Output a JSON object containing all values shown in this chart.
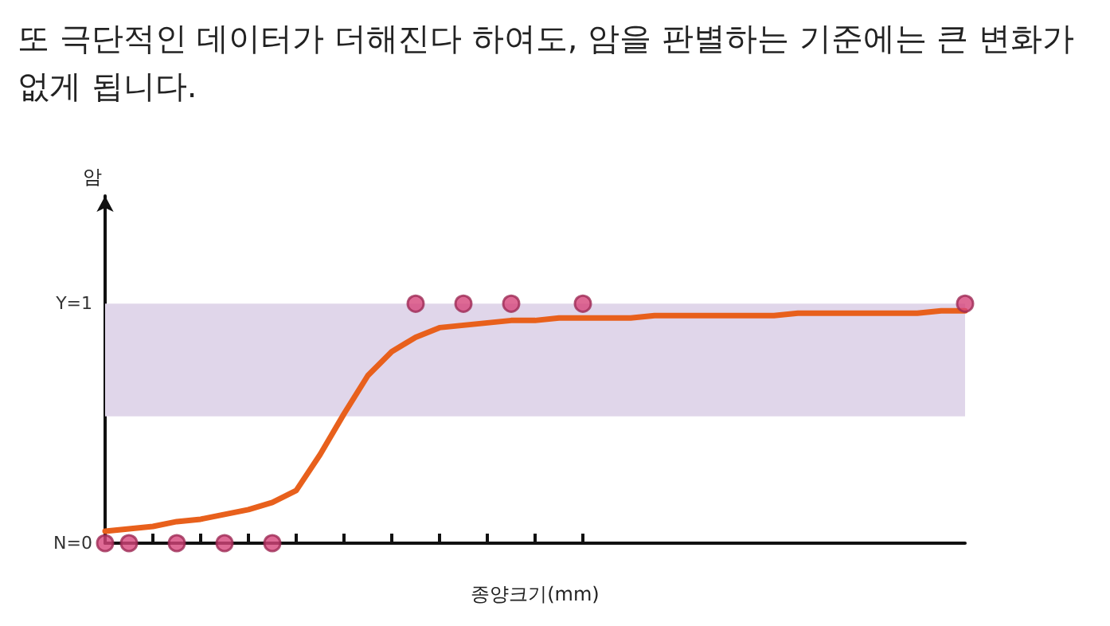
{
  "chart_data": {
    "type": "scatter",
    "title": "또 극단적인 데이터가 더해진다 하여도, 암을 판별하는 기준에는 큰 변화가 없게 됩니다.",
    "xlabel": "종양크기(mm)",
    "ylabel": "암",
    "categories": [
      null,
      null,
      null,
      null,
      null,
      null,
      null,
      null,
      null,
      null,
      null,
      null,
      null,
      null,
      null,
      null,
      null,
      null,
      null,
      null,
      null,
      null,
      null,
      null,
      null,
      null,
      null,
      null,
      null,
      null,
      null,
      null,
      null,
      null,
      null,
      null,
      null
    ],
    "series": [
      {
        "type": "line",
        "color": "#e8601c",
        "marker": "none",
        "values": [
          0.05,
          0.06,
          0.07,
          0.09,
          0.1,
          0.12,
          0.14,
          0.17,
          0.22,
          0.37,
          0.54,
          0.7,
          0.8,
          0.86,
          0.9,
          0.91,
          0.92,
          0.93,
          0.93,
          0.94,
          0.94,
          0.94,
          0.94,
          0.95,
          0.95,
          0.95,
          0.95,
          0.95,
          0.95,
          0.96,
          0.96,
          0.96,
          0.96,
          0.96,
          0.96,
          0.97,
          0.97
        ]
      },
      {
        "color": "#d6457a",
        "marker": "circle",
        "values": [
          0,
          0,
          null,
          0,
          null,
          0,
          null,
          0,
          null,
          null,
          null,
          null,
          null,
          1,
          null,
          1,
          null,
          1,
          null,
          null,
          1,
          null,
          null,
          null,
          null,
          null,
          null,
          null,
          null,
          null,
          null,
          null,
          null,
          null,
          null,
          null,
          1
        ]
      }
    ],
    "bands": [
      {
        "axis": "y",
        "from": 0.53,
        "to": 1,
        "color": "#e0d6ea"
      }
    ],
    "ylim": [
      0,
      1.45
    ],
    "yticks": [
      {
        "value": 0,
        "label": "N=0"
      },
      {
        "value": 1,
        "label": "Y=1"
      }
    ],
    "grid": false
  }
}
